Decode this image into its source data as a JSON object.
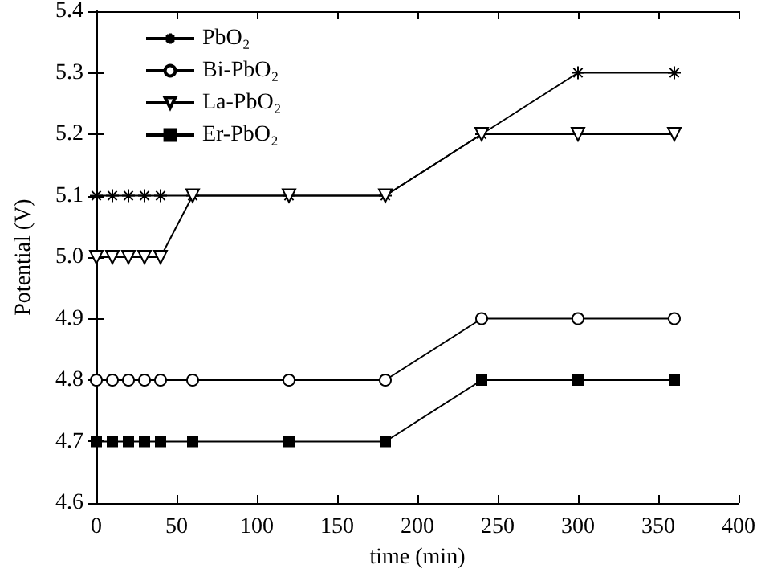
{
  "chart_data": {
    "type": "line",
    "xlabel": "time (min)",
    "ylabel": "Potential (V)",
    "x": [
      0,
      10,
      20,
      30,
      40,
      60,
      120,
      180,
      240,
      300,
      360
    ],
    "series": [
      {
        "name": "PbO₂",
        "color": "#000000",
        "marker": "cross",
        "values": [
          5.1,
          5.1,
          5.1,
          5.1,
          5.1,
          5.1,
          5.1,
          5.1,
          5.2,
          5.3,
          5.3
        ]
      },
      {
        "name": "Bi-PbO₂",
        "color": "#000000",
        "marker": "circle",
        "values": [
          4.8,
          4.8,
          4.8,
          4.8,
          4.8,
          4.8,
          4.8,
          4.8,
          4.9,
          4.9,
          4.9
        ]
      },
      {
        "name": "La-PbO₂",
        "color": "#000000",
        "marker": "triangle",
        "values": [
          5.0,
          5.0,
          5.0,
          5.0,
          5.0,
          5.1,
          5.1,
          5.1,
          5.2,
          5.2,
          5.2
        ]
      },
      {
        "name": "Er-PbO₂",
        "color": "#000000",
        "marker": "square",
        "values": [
          4.7,
          4.7,
          4.7,
          4.7,
          4.7,
          4.7,
          4.7,
          4.7,
          4.8,
          4.8,
          4.8
        ]
      }
    ],
    "xlim": [
      0,
      400
    ],
    "xticks": [
      0,
      50,
      100,
      150,
      200,
      250,
      300,
      350,
      400
    ],
    "ylim": [
      4.6,
      5.4
    ],
    "yticks": [
      4.6,
      4.7,
      4.8,
      4.9,
      {
        "value": 5,
        "label": "5.0"
      },
      5.1,
      5.2,
      5.3,
      5.4
    ],
    "legend": "top left",
    "grid": false
  }
}
